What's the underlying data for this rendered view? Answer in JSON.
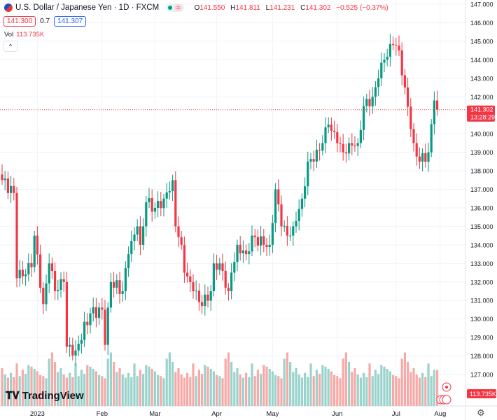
{
  "header": {
    "title": "U.S. Dollar / Japanese Yen · 1D · FXCM",
    "o_label": "O",
    "o": "141.550",
    "h_label": "H",
    "h": "141.811",
    "l_label": "L",
    "l": "141.231",
    "c_label": "C",
    "c": "141.302",
    "change": "−0.525 (−0.37%)",
    "bid": "141.300",
    "spread": "0.7",
    "ask": "141.307",
    "vol_label": "Vol",
    "vol": "113.735K",
    "collapse": "^"
  },
  "branding": "TradingView",
  "settings_icon": "⚙",
  "colors": {
    "up": "#089981",
    "down": "#f23645",
    "vol_up": "#9ad3cb",
    "vol_down": "#f7a9a7",
    "grid": "#f0f3fa"
  },
  "chart_data": {
    "type": "candlestick",
    "title": "U.S. Dollar / Japanese Yen · 1D · FXCM",
    "ylim": [
      126,
      147
    ],
    "y_ticks": [
      "147.000",
      "146.000",
      "145.000",
      "144.000",
      "143.000",
      "142.000",
      "140.000",
      "139.000",
      "138.000",
      "137.000",
      "136.000",
      "135.000",
      "134.000",
      "133.000",
      "132.000",
      "131.000",
      "130.000",
      "129.000",
      "128.000",
      "127.000"
    ],
    "x_ticks": [
      {
        "label": "2023",
        "bar": 12
      },
      {
        "label": "Feb",
        "bar": 34
      },
      {
        "label": "Mar",
        "bar": 52
      },
      {
        "label": "Apr",
        "bar": 73
      },
      {
        "label": "May",
        "bar": 92
      },
      {
        "label": "Jun",
        "bar": 114
      },
      {
        "label": "Jul",
        "bar": 134
      },
      {
        "label": "Aug",
        "bar": 149
      }
    ],
    "close_keypoints": [
      [
        0,
        137.5
      ],
      [
        4,
        136.8
      ],
      [
        5,
        132.2
      ],
      [
        10,
        132.8
      ],
      [
        11,
        134.5
      ],
      [
        14,
        130.8
      ],
      [
        16,
        133
      ],
      [
        18,
        131.5
      ],
      [
        21,
        132
      ],
      [
        22,
        128.5
      ],
      [
        25,
        128.3
      ],
      [
        30,
        130.3
      ],
      [
        34,
        130.5
      ],
      [
        35,
        128.6
      ],
      [
        37,
        132
      ],
      [
        41,
        131.5
      ],
      [
        43,
        133.5
      ],
      [
        46,
        135
      ],
      [
        47,
        134
      ],
      [
        49,
        136.3
      ],
      [
        52,
        136
      ],
      [
        55,
        136.5
      ],
      [
        58,
        137.5
      ],
      [
        59,
        135
      ],
      [
        61,
        134
      ],
      [
        62,
        132.5
      ],
      [
        65,
        131.5
      ],
      [
        68,
        130.7
      ],
      [
        71,
        131.5
      ],
      [
        72,
        133
      ],
      [
        74,
        133
      ],
      [
        77,
        131.5
      ],
      [
        78,
        132.5
      ],
      [
        80,
        134
      ],
      [
        83,
        133.5
      ],
      [
        85,
        134.5
      ],
      [
        89,
        134
      ],
      [
        91,
        134
      ],
      [
        93,
        137
      ],
      [
        95,
        135
      ],
      [
        97,
        134.5
      ],
      [
        99,
        135
      ],
      [
        102,
        136.5
      ],
      [
        104,
        138.5
      ],
      [
        106,
        138.5
      ],
      [
        109,
        139.5
      ],
      [
        111,
        140.5
      ],
      [
        114,
        139.5
      ],
      [
        116,
        139
      ],
      [
        118,
        139.5
      ],
      [
        121,
        139.5
      ],
      [
        123,
        141.5
      ],
      [
        126,
        142
      ],
      [
        128,
        143
      ],
      [
        130,
        144
      ],
      [
        133,
        144.8
      ],
      [
        135,
        144.5
      ],
      [
        137,
        142.5
      ],
      [
        140,
        139.5
      ],
      [
        142,
        138.5
      ],
      [
        145,
        139
      ],
      [
        147,
        141.8
      ],
      [
        148,
        141.302
      ]
    ],
    "volume_k_pattern": [
      120,
      105,
      95,
      130,
      110,
      88,
      140,
      100,
      92,
      115,
      125,
      98,
      150,
      108,
      90,
      135,
      102,
      118,
      95,
      170
    ],
    "last_price": "141.302",
    "countdown": "13:28:29",
    "last_volume": "113.735K"
  }
}
